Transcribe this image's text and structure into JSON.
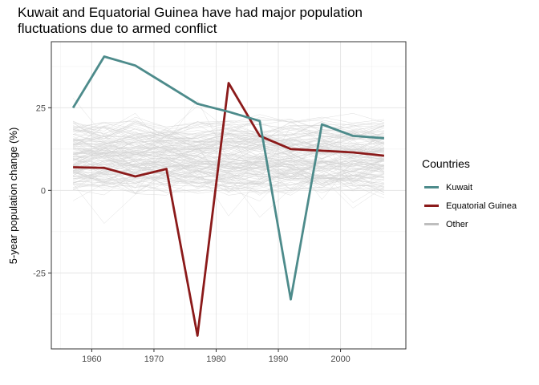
{
  "chart_data": {
    "type": "line",
    "title": "Kuwait and Equatorial Guinea have had major population\n fluctuations due to armed conflict",
    "xlabel": "",
    "ylabel": "5-year population change (%)",
    "x": [
      1957,
      1962,
      1967,
      1972,
      1977,
      1982,
      1987,
      1992,
      1997,
      2002,
      2007
    ],
    "xlim": [
      1953.5,
      2010.5
    ],
    "ylim": [
      -48,
      45
    ],
    "xticks": [
      1960,
      1970,
      1980,
      1990,
      2000
    ],
    "xtick_labels": [
      "1960",
      "1970",
      "1980",
      "1990",
      "2000"
    ],
    "yticks": [
      -25,
      0,
      25
    ],
    "ytick_labels": [
      "-25",
      "0",
      "25"
    ],
    "grid": true,
    "legend_position": "right",
    "legend_title": "Countries",
    "legend": [
      {
        "label": "Kuwait",
        "color": "#4d8b8b"
      },
      {
        "label": "Equatorial Guinea",
        "color": "#8b1a1a"
      },
      {
        "label": "Other",
        "color": "#bebebe"
      }
    ],
    "series": [
      {
        "name": "Kuwait",
        "color": "#4d8b8b",
        "values": [
          25.0,
          40.5,
          37.8,
          32.0,
          26.2,
          23.8,
          21.0,
          -33.0,
          20.0,
          16.5,
          15.8
        ]
      },
      {
        "name": "Equatorial Guinea",
        "color": "#8b1a1a",
        "values": [
          7.0,
          6.8,
          4.2,
          6.5,
          -44.0,
          32.5,
          16.5,
          12.5,
          12.0,
          11.5,
          10.5
        ]
      }
    ],
    "background_series_note": "about 140 light grey lines, mostly between -5% and 25%",
    "background_color": "#d3d3d3"
  }
}
